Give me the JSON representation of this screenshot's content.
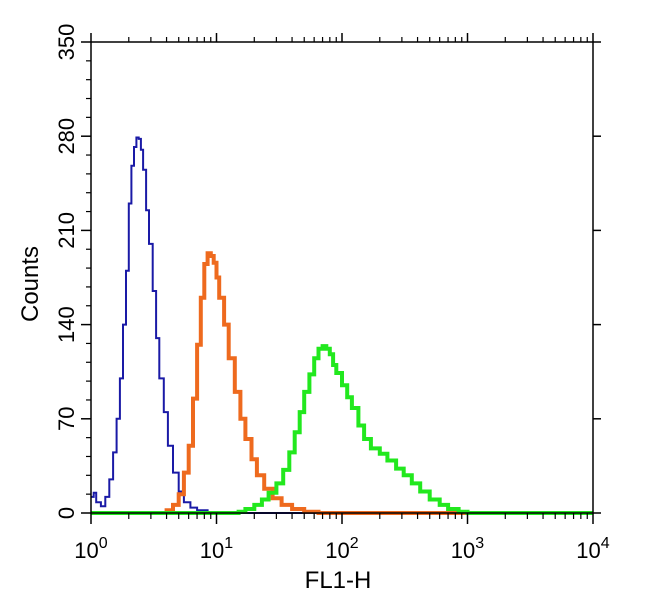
{
  "chart_data": {
    "type": "line",
    "title": "",
    "xlabel": "FL1-H",
    "ylabel": "Counts",
    "xscale": "log",
    "xlim": [
      1,
      10000
    ],
    "ylim": [
      0,
      350
    ],
    "grid": false,
    "y_ticks": [
      {
        "value": 0,
        "label": "0"
      },
      {
        "value": 70,
        "label": "70"
      },
      {
        "value": 140,
        "label": "140"
      },
      {
        "value": 210,
        "label": "210"
      },
      {
        "value": 280,
        "label": "280"
      },
      {
        "value": 350,
        "label": "350"
      }
    ],
    "x_ticks": [
      {
        "value": 1,
        "base": "10",
        "exp": "0"
      },
      {
        "value": 10,
        "base": "10",
        "exp": "1"
      },
      {
        "value": 100,
        "base": "10",
        "exp": "2"
      },
      {
        "value": 1000,
        "base": "10",
        "exp": "3"
      },
      {
        "value": 10000,
        "base": "10",
        "exp": "4"
      }
    ],
    "series": [
      {
        "color": "#1a1aa6",
        "style": "thin",
        "points": [
          [
            1.0,
            12
          ],
          [
            1.05,
            15
          ],
          [
            1.1,
            8
          ],
          [
            1.2,
            5
          ],
          [
            1.3,
            12
          ],
          [
            1.4,
            25
          ],
          [
            1.5,
            45
          ],
          [
            1.6,
            70
          ],
          [
            1.7,
            100
          ],
          [
            1.8,
            140
          ],
          [
            1.9,
            180
          ],
          [
            2.0,
            230
          ],
          [
            2.1,
            258
          ],
          [
            2.2,
            272
          ],
          [
            2.3,
            279
          ],
          [
            2.4,
            278
          ],
          [
            2.5,
            270
          ],
          [
            2.6,
            255
          ],
          [
            2.75,
            225
          ],
          [
            2.9,
            200
          ],
          [
            3.1,
            165
          ],
          [
            3.3,
            130
          ],
          [
            3.5,
            100
          ],
          [
            3.8,
            75
          ],
          [
            4.1,
            50
          ],
          [
            4.5,
            30
          ],
          [
            5.0,
            16
          ],
          [
            5.5,
            8
          ],
          [
            6.2,
            4
          ],
          [
            7.0,
            2
          ],
          [
            8.5,
            0.5
          ],
          [
            10,
            0
          ],
          [
            100,
            0
          ],
          [
            10000,
            0
          ]
        ]
      },
      {
        "color": "#ee6a1e",
        "style": "thick",
        "points": [
          [
            1,
            0
          ],
          [
            3.5,
            0
          ],
          [
            4.0,
            2
          ],
          [
            4.5,
            6
          ],
          [
            5.0,
            14
          ],
          [
            5.5,
            30
          ],
          [
            6.0,
            50
          ],
          [
            6.5,
            85
          ],
          [
            7.0,
            125
          ],
          [
            7.5,
            160
          ],
          [
            8.0,
            185
          ],
          [
            8.5,
            193
          ],
          [
            9.0,
            191
          ],
          [
            9.5,
            186
          ],
          [
            10.0,
            175
          ],
          [
            10.5,
            160
          ],
          [
            11.5,
            140
          ],
          [
            12.5,
            115
          ],
          [
            14,
            90
          ],
          [
            15.5,
            70
          ],
          [
            17,
            55
          ],
          [
            19,
            40
          ],
          [
            21,
            28
          ],
          [
            24,
            18
          ],
          [
            28,
            11
          ],
          [
            33,
            6
          ],
          [
            40,
            3
          ],
          [
            50,
            1
          ],
          [
            65,
            0
          ],
          [
            10000,
            0
          ]
        ]
      },
      {
        "color": "#22e81e",
        "style": "thick",
        "points": [
          [
            1,
            0
          ],
          [
            14,
            0
          ],
          [
            15,
            1
          ],
          [
            17,
            3
          ],
          [
            20,
            6
          ],
          [
            23,
            10
          ],
          [
            26,
            15
          ],
          [
            30,
            22
          ],
          [
            34,
            32
          ],
          [
            38,
            45
          ],
          [
            42,
            60
          ],
          [
            46,
            75
          ],
          [
            50,
            90
          ],
          [
            55,
            103
          ],
          [
            60,
            115
          ],
          [
            65,
            122
          ],
          [
            70,
            124
          ],
          [
            75,
            122
          ],
          [
            80,
            118
          ],
          [
            85,
            110
          ],
          [
            90,
            104
          ],
          [
            100,
            95
          ],
          [
            110,
            86
          ],
          [
            120,
            78
          ],
          [
            135,
            65
          ],
          [
            150,
            55
          ],
          [
            170,
            48
          ],
          [
            200,
            44
          ],
          [
            230,
            39
          ],
          [
            270,
            33
          ],
          [
            310,
            28
          ],
          [
            360,
            22
          ],
          [
            420,
            16
          ],
          [
            500,
            10
          ],
          [
            600,
            6
          ],
          [
            700,
            3
          ],
          [
            850,
            1
          ],
          [
            1000,
            0
          ],
          [
            10000,
            0
          ]
        ]
      }
    ]
  }
}
